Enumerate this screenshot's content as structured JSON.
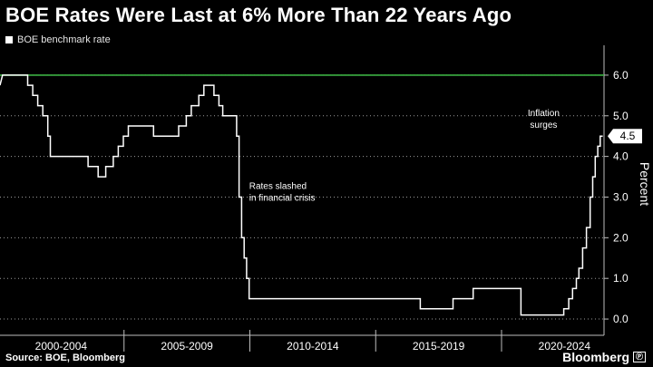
{
  "title": "BOE Rates Were Last at 6% More Than 22 Years Ago",
  "legend": {
    "label": "BOE benchmark rate"
  },
  "footer": {
    "source": "Source: BOE, Bloomberg"
  },
  "brand": {
    "name": "Bloomberg",
    "badge": "Ⓟ"
  },
  "colors": {
    "background": "#000000",
    "series": "#ffffff",
    "reference_line": "#3cb043",
    "callout_bg": "#ffffff"
  },
  "chart_data": {
    "type": "line",
    "ylabel": "Percent",
    "ylim": [
      -0.4,
      6.6
    ],
    "xlim": [
      2000.0,
      2024.0
    ],
    "yticks": [
      0.0,
      1.0,
      2.0,
      3.0,
      4.0,
      5.0,
      6.0
    ],
    "ytick_labels": [
      "0.0",
      "1.0",
      "2.0",
      "3.0",
      "4.0",
      "5.0",
      "6.0"
    ],
    "xtick_labels": [
      "2000-2004",
      "2005-2009",
      "2010-2014",
      "2015-2019",
      "2020-2024"
    ],
    "reference_line": {
      "y": 6.0
    },
    "last_value_label": "4.5",
    "annotations": [
      {
        "lines": [
          "Rates slashed",
          "in financial crisis"
        ],
        "x": 2009.9,
        "y": 3.2
      },
      {
        "lines": [
          "Inflation",
          "surges"
        ],
        "x": 2021.6,
        "y": 5.0
      }
    ],
    "series": [
      {
        "name": "BOE benchmark rate",
        "points": [
          [
            2000.0,
            5.75
          ],
          [
            2000.1,
            6.0
          ],
          [
            2000.15,
            6.0
          ],
          [
            2001.1,
            6.0
          ],
          [
            2001.1,
            5.75
          ],
          [
            2001.3,
            5.75
          ],
          [
            2001.3,
            5.5
          ],
          [
            2001.5,
            5.5
          ],
          [
            2001.5,
            5.25
          ],
          [
            2001.7,
            5.25
          ],
          [
            2001.7,
            5.0
          ],
          [
            2001.9,
            5.0
          ],
          [
            2001.9,
            4.5
          ],
          [
            2002.0,
            4.5
          ],
          [
            2002.0,
            4.0
          ],
          [
            2003.5,
            4.0
          ],
          [
            2003.5,
            3.75
          ],
          [
            2003.9,
            3.75
          ],
          [
            2003.9,
            3.5
          ],
          [
            2004.2,
            3.5
          ],
          [
            2004.2,
            3.75
          ],
          [
            2004.5,
            3.75
          ],
          [
            2004.5,
            4.0
          ],
          [
            2004.7,
            4.0
          ],
          [
            2004.7,
            4.25
          ],
          [
            2004.9,
            4.25
          ],
          [
            2004.9,
            4.5
          ],
          [
            2005.1,
            4.5
          ],
          [
            2005.1,
            4.75
          ],
          [
            2006.1,
            4.75
          ],
          [
            2006.1,
            4.5
          ],
          [
            2007.1,
            4.5
          ],
          [
            2007.1,
            4.75
          ],
          [
            2007.4,
            4.75
          ],
          [
            2007.4,
            5.0
          ],
          [
            2007.6,
            5.0
          ],
          [
            2007.6,
            5.25
          ],
          [
            2007.9,
            5.25
          ],
          [
            2007.9,
            5.5
          ],
          [
            2008.1,
            5.5
          ],
          [
            2008.1,
            5.75
          ],
          [
            2008.5,
            5.75
          ],
          [
            2008.5,
            5.5
          ],
          [
            2008.7,
            5.5
          ],
          [
            2008.7,
            5.25
          ],
          [
            2008.85,
            5.25
          ],
          [
            2008.85,
            5.0
          ],
          [
            2009.4,
            5.0
          ],
          [
            2009.4,
            4.5
          ],
          [
            2009.5,
            4.5
          ],
          [
            2009.5,
            3.0
          ],
          [
            2009.6,
            3.0
          ],
          [
            2009.6,
            2.0
          ],
          [
            2009.7,
            2.0
          ],
          [
            2009.7,
            1.5
          ],
          [
            2009.8,
            1.5
          ],
          [
            2009.8,
            1.0
          ],
          [
            2009.9,
            1.0
          ],
          [
            2009.9,
            0.5
          ],
          [
            2016.7,
            0.5
          ],
          [
            2016.7,
            0.25
          ],
          [
            2018.0,
            0.25
          ],
          [
            2018.0,
            0.5
          ],
          [
            2018.8,
            0.5
          ],
          [
            2018.8,
            0.75
          ],
          [
            2020.7,
            0.75
          ],
          [
            2020.7,
            0.1
          ],
          [
            2022.4,
            0.1
          ],
          [
            2022.4,
            0.25
          ],
          [
            2022.6,
            0.25
          ],
          [
            2022.6,
            0.5
          ],
          [
            2022.75,
            0.5
          ],
          [
            2022.75,
            0.75
          ],
          [
            2022.9,
            0.75
          ],
          [
            2022.9,
            1.0
          ],
          [
            2023.0,
            1.0
          ],
          [
            2023.0,
            1.25
          ],
          [
            2023.15,
            1.25
          ],
          [
            2023.15,
            1.75
          ],
          [
            2023.3,
            1.75
          ],
          [
            2023.3,
            2.25
          ],
          [
            2023.45,
            2.25
          ],
          [
            2023.45,
            3.0
          ],
          [
            2023.55,
            3.0
          ],
          [
            2023.55,
            3.5
          ],
          [
            2023.65,
            3.5
          ],
          [
            2023.65,
            4.0
          ],
          [
            2023.75,
            4.0
          ],
          [
            2023.75,
            4.25
          ],
          [
            2023.85,
            4.25
          ],
          [
            2023.85,
            4.5
          ],
          [
            2023.95,
            4.5
          ]
        ]
      }
    ]
  }
}
